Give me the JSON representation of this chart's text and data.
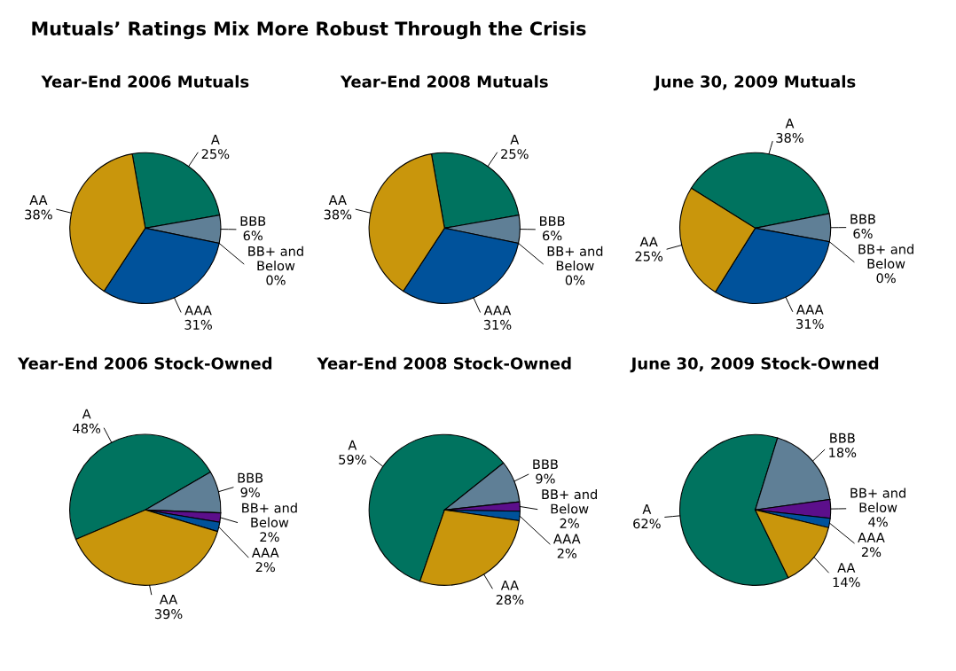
{
  "chart_data": [
    {
      "type": "pie",
      "title": "Year-End 2006 Mutuals",
      "annotations": [
        "Mutuals’ Ratings Mix More Robust Through the Crisis"
      ],
      "categories": [
        "A",
        "BBB",
        "BB+ and\nBelow",
        "AAA",
        "AA"
      ],
      "values": [
        25,
        6,
        0,
        31,
        38
      ],
      "value_labels": [
        "25%",
        "6%",
        "0%",
        "31%",
        "38%"
      ],
      "colors": [
        "#00735f",
        "#5f7f96",
        "#5c0f8b",
        "#00529b",
        "#c9960c"
      ]
    },
    {
      "type": "pie",
      "title": "Year-End 2008 Mutuals",
      "categories": [
        "A",
        "BBB",
        "BB+ and\nBelow",
        "AAA",
        "AA"
      ],
      "values": [
        25,
        6,
        0,
        31,
        38
      ],
      "value_labels": [
        "25%",
        "6%",
        "0%",
        "31%",
        "38%"
      ],
      "colors": [
        "#00735f",
        "#5f7f96",
        "#5c0f8b",
        "#00529b",
        "#c9960c"
      ]
    },
    {
      "type": "pie",
      "title": "June 30, 2009 Mutuals",
      "categories": [
        "A",
        "BBB",
        "BB+ and\nBelow",
        "AAA",
        "AA"
      ],
      "values": [
        38,
        6,
        0,
        31,
        25
      ],
      "value_labels": [
        "38%",
        "6%",
        "0%",
        "31%",
        "25%"
      ],
      "colors": [
        "#00735f",
        "#5f7f96",
        "#5c0f8b",
        "#00529b",
        "#c9960c"
      ]
    },
    {
      "type": "pie",
      "title": "Year-End 2006 Stock-Owned",
      "categories": [
        "A",
        "BBB",
        "BB+ and\nBelow",
        "AAA",
        "AA"
      ],
      "values": [
        48,
        9,
        2,
        2,
        39
      ],
      "value_labels": [
        "48%",
        "9%",
        "2%",
        "2%",
        "39%"
      ],
      "colors": [
        "#00735f",
        "#5f7f96",
        "#5c0f8b",
        "#00529b",
        "#c9960c"
      ]
    },
    {
      "type": "pie",
      "title": "Year-End 2008 Stock-Owned",
      "categories": [
        "A",
        "BBB",
        "BB+ and\nBelow",
        "AAA",
        "AA"
      ],
      "values": [
        59,
        9,
        2,
        2,
        28
      ],
      "value_labels": [
        "59%",
        "9%",
        "2%",
        "2%",
        "28%"
      ],
      "colors": [
        "#00735f",
        "#5f7f96",
        "#5c0f8b",
        "#00529b",
        "#c9960c"
      ]
    },
    {
      "type": "pie",
      "title": "June 30, 2009 Stock-Owned",
      "categories": [
        "A",
        "BBB",
        "BB+ and\nBelow",
        "AAA",
        "AA"
      ],
      "values": [
        62,
        18,
        4,
        2,
        14
      ],
      "value_labels": [
        "62%",
        "18%",
        "4%",
        "2%",
        "14%"
      ],
      "colors": [
        "#00735f",
        "#5f7f96",
        "#5c0f8b",
        "#00529b",
        "#c9960c"
      ]
    }
  ]
}
